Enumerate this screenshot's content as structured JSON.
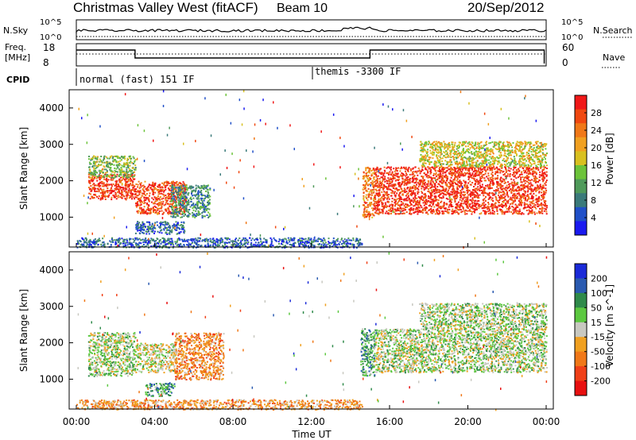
{
  "header": {
    "title": "Christmas Valley West (fitACF)",
    "beam": "Beam 10",
    "date": "20/Sep/2012"
  },
  "noise_panel": {
    "left_label": "N.Sky",
    "left_ticks": [
      "10^5",
      "10^0"
    ],
    "right_label": "N.Search",
    "right_ticks": [
      "10^5",
      "10^0"
    ]
  },
  "freq_panel": {
    "left_label_1": "Freq.",
    "left_label_2": "[MHz]",
    "left_ticks": [
      "18",
      "8"
    ],
    "right_label": "Nave",
    "right_ticks": [
      "60",
      "0"
    ]
  },
  "cpid": {
    "label": "CPID",
    "programs": [
      {
        "name": "normal (fast) 151 IF",
        "start_hour": 0
      },
      {
        "name": "themis -3300 IF",
        "start_hour": 12.05
      }
    ]
  },
  "x_axis": {
    "label": "Time UT",
    "ticks": [
      "00:00",
      "04:00",
      "08:00",
      "12:00",
      "16:00",
      "20:00",
      "00:00"
    ],
    "range_hours": [
      0,
      24
    ]
  },
  "power_panel": {
    "ylabel": "Slant Range [km]",
    "yticks": [
      "1000",
      "2000",
      "3000",
      "4000"
    ],
    "colorbar_label": "Power [dB]",
    "colorbar_ticks": [
      "4",
      "8",
      "12",
      "16",
      "20",
      "24",
      "28"
    ],
    "colors": [
      "#1a1af0",
      "#2050c8",
      "#3a7a7a",
      "#4f9a5a",
      "#6cc33a",
      "#d8c020",
      "#f0a020",
      "#f07818",
      "#f04810",
      "#f01818"
    ]
  },
  "velocity_panel": {
    "ylabel": "Slant Range [km]",
    "yticks": [
      "1000",
      "2000",
      "3000",
      "4000"
    ],
    "colorbar_label": "Velocity [m s^-1]",
    "colorbar_ticks": [
      "200",
      "100",
      "50",
      "15",
      "-15",
      "-50",
      "-100",
      "-200"
    ],
    "colors": [
      "#1a2ad8",
      "#2a5ab0",
      "#2f8a4a",
      "#5cc840",
      "#c8c8c0",
      "#f0a020",
      "#f07818",
      "#f04018",
      "#e81010"
    ]
  },
  "chart_data": {
    "type": "heatmap",
    "x_range_hours": [
      0,
      24
    ],
    "y_range_km": [
      180,
      4500
    ],
    "power_regions": [
      {
        "t0": 0.6,
        "t1": 3.0,
        "r0": 1500,
        "r1": 2200,
        "level": 0.9
      },
      {
        "t0": 0.6,
        "t1": 3.0,
        "r0": 2100,
        "r1": 2700,
        "level": 0.45
      },
      {
        "t0": 3.0,
        "t1": 5.6,
        "r0": 1100,
        "r1": 2000,
        "level": 0.85
      },
      {
        "t0": 4.8,
        "t1": 6.8,
        "r0": 1000,
        "r1": 1900,
        "level": 0.3
      },
      {
        "t0": 3.0,
        "t1": 5.5,
        "r0": 550,
        "r1": 900,
        "level": 0.2
      },
      {
        "t0": 14.6,
        "t1": 15.2,
        "r0": 1000,
        "r1": 2400,
        "level": 0.75
      },
      {
        "t0": 15.2,
        "t1": 24.0,
        "r0": 1100,
        "r1": 2400,
        "level": 0.9
      },
      {
        "t0": 17.5,
        "t1": 24.0,
        "r0": 2400,
        "r1": 3100,
        "level": 0.55
      },
      {
        "t0": 0.0,
        "t1": 14.6,
        "r0": 180,
        "r1": 450,
        "level": 0.2
      }
    ],
    "velocity_regions": [
      {
        "t0": 0.6,
        "t1": 3.0,
        "r0": 1100,
        "r1": 2300,
        "level": 0.45
      },
      {
        "t0": 3.0,
        "t1": 5.0,
        "r0": 1200,
        "r1": 2000,
        "level": 0.5
      },
      {
        "t0": 5.0,
        "t1": 7.5,
        "r0": 1000,
        "r1": 2300,
        "level": 0.68
      },
      {
        "t0": 3.5,
        "t1": 5.0,
        "r0": 550,
        "r1": 900,
        "level": 0.3
      },
      {
        "t0": 14.5,
        "t1": 15.2,
        "r0": 1100,
        "r1": 2400,
        "level": 0.32
      },
      {
        "t0": 15.2,
        "t1": 24.0,
        "r0": 1200,
        "r1": 2400,
        "level": 0.45
      },
      {
        "t0": 17.5,
        "t1": 24.0,
        "r0": 2400,
        "r1": 3100,
        "level": 0.45
      },
      {
        "t0": 0.0,
        "t1": 14.6,
        "r0": 180,
        "r1": 450,
        "level": 0.65
      }
    ]
  }
}
